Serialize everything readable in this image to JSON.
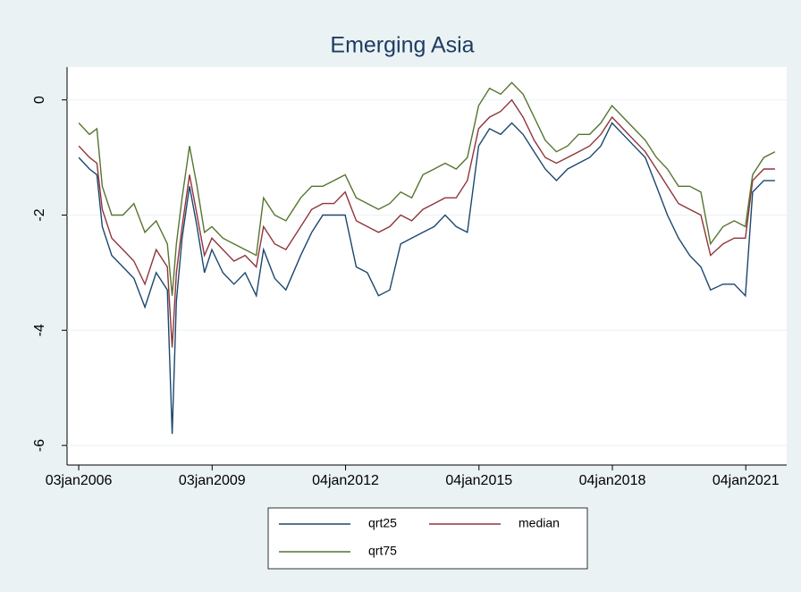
{
  "chart_data": {
    "type": "line",
    "title": "Emerging Asia",
    "x": [
      "2006-01-03",
      "2006-04-01",
      "2006-06-01",
      "2006-07-15",
      "2006-10-01",
      "2007-01-01",
      "2007-04-01",
      "2007-07-01",
      "2007-10-01",
      "2008-01-01",
      "2008-02-10",
      "2008-03-15",
      "2008-05-01",
      "2008-07-01",
      "2008-09-01",
      "2008-11-01",
      "2009-01-01",
      "2009-04-01",
      "2009-07-01",
      "2009-10-01",
      "2010-01-01",
      "2010-03-01",
      "2010-06-01",
      "2010-09-01",
      "2011-01-01",
      "2011-04-01",
      "2011-07-01",
      "2011-10-01",
      "2012-01-01",
      "2012-04-01",
      "2012-07-01",
      "2012-10-01",
      "2013-01-01",
      "2013-04-01",
      "2013-07-01",
      "2013-10-01",
      "2014-01-01",
      "2014-04-01",
      "2014-07-01",
      "2014-10-01",
      "2015-01-01",
      "2015-04-01",
      "2015-07-01",
      "2015-10-01",
      "2016-01-01",
      "2016-04-01",
      "2016-07-01",
      "2016-10-01",
      "2017-01-01",
      "2017-04-01",
      "2017-07-01",
      "2017-10-01",
      "2018-01-01",
      "2018-04-01",
      "2018-07-01",
      "2018-10-01",
      "2019-01-01",
      "2019-04-01",
      "2019-07-01",
      "2019-10-01",
      "2020-01-01",
      "2020-03-20",
      "2020-07-01",
      "2020-10-01",
      "2021-01-01",
      "2021-03-01",
      "2021-06-01",
      "2021-09-01"
    ],
    "series": [
      {
        "name": "qrt25",
        "color": "#1a476f",
        "values": [
          -1.0,
          -1.2,
          -1.3,
          -2.2,
          -2.7,
          -2.9,
          -3.1,
          -3.6,
          -3.0,
          -3.3,
          -5.8,
          -3.5,
          -2.4,
          -1.5,
          -2.2,
          -3.0,
          -2.6,
          -3.0,
          -3.2,
          -3.0,
          -3.4,
          -2.6,
          -3.1,
          -3.3,
          -2.7,
          -2.3,
          -2.0,
          -2.0,
          -2.0,
          -2.9,
          -3.0,
          -3.4,
          -3.3,
          -2.5,
          -2.4,
          -2.3,
          -2.2,
          -2.0,
          -2.2,
          -2.3,
          -0.8,
          -0.5,
          -0.6,
          -0.4,
          -0.6,
          -0.9,
          -1.2,
          -1.4,
          -1.2,
          -1.1,
          -1.0,
          -0.8,
          -0.4,
          -0.6,
          -0.8,
          -1.0,
          -1.5,
          -2.0,
          -2.4,
          -2.7,
          -2.9,
          -3.3,
          -3.2,
          -3.2,
          -3.4,
          -1.6,
          -1.4,
          -1.4
        ]
      },
      {
        "name": "median",
        "color": "#90353b",
        "values": [
          -0.8,
          -1.0,
          -1.1,
          -1.9,
          -2.4,
          -2.6,
          -2.8,
          -3.2,
          -2.6,
          -2.9,
          -4.3,
          -3.0,
          -2.2,
          -1.3,
          -2.0,
          -2.7,
          -2.4,
          -2.6,
          -2.8,
          -2.7,
          -2.9,
          -2.2,
          -2.5,
          -2.6,
          -2.2,
          -1.9,
          -1.8,
          -1.8,
          -1.6,
          -2.1,
          -2.2,
          -2.3,
          -2.2,
          -2.0,
          -2.1,
          -1.9,
          -1.8,
          -1.7,
          -1.7,
          -1.4,
          -0.5,
          -0.3,
          -0.2,
          0.0,
          -0.3,
          -0.7,
          -1.0,
          -1.1,
          -1.0,
          -0.9,
          -0.8,
          -0.6,
          -0.3,
          -0.5,
          -0.7,
          -0.9,
          -1.2,
          -1.5,
          -1.8,
          -1.9,
          -2.0,
          -2.7,
          -2.5,
          -2.4,
          -2.4,
          -1.4,
          -1.2,
          -1.2
        ]
      },
      {
        "name": "qrt75",
        "color": "#55752f",
        "values": [
          -0.4,
          -0.6,
          -0.5,
          -1.5,
          -2.0,
          -2.0,
          -1.8,
          -2.3,
          -2.1,
          -2.5,
          -3.4,
          -2.5,
          -1.7,
          -0.8,
          -1.5,
          -2.3,
          -2.2,
          -2.4,
          -2.5,
          -2.6,
          -2.7,
          -1.7,
          -2.0,
          -2.1,
          -1.7,
          -1.5,
          -1.5,
          -1.4,
          -1.3,
          -1.7,
          -1.8,
          -1.9,
          -1.8,
          -1.6,
          -1.7,
          -1.3,
          -1.2,
          -1.1,
          -1.2,
          -1.0,
          -0.1,
          0.2,
          0.1,
          0.3,
          0.1,
          -0.3,
          -0.7,
          -0.9,
          -0.8,
          -0.6,
          -0.6,
          -0.4,
          -0.1,
          -0.3,
          -0.5,
          -0.7,
          -1.0,
          -1.2,
          -1.5,
          -1.5,
          -1.6,
          -2.5,
          -2.2,
          -2.1,
          -2.2,
          -1.3,
          -1.0,
          -0.9
        ]
      }
    ],
    "xlim": [
      "2005-09-29",
      "2021-12-06"
    ],
    "xticks": [
      {
        "value": "2006-01-03",
        "label": "03jan2006"
      },
      {
        "value": "2009-01-03",
        "label": "03jan2009"
      },
      {
        "value": "2012-01-04",
        "label": "04jan2012"
      },
      {
        "value": "2015-01-04",
        "label": "04jan2015"
      },
      {
        "value": "2018-01-04",
        "label": "04jan2018"
      },
      {
        "value": "2021-01-04",
        "label": "04jan2021"
      }
    ],
    "ylim": [
      -6.34,
      0.57
    ],
    "yticks": [
      0,
      -2,
      -4,
      -6
    ],
    "grid": true
  }
}
